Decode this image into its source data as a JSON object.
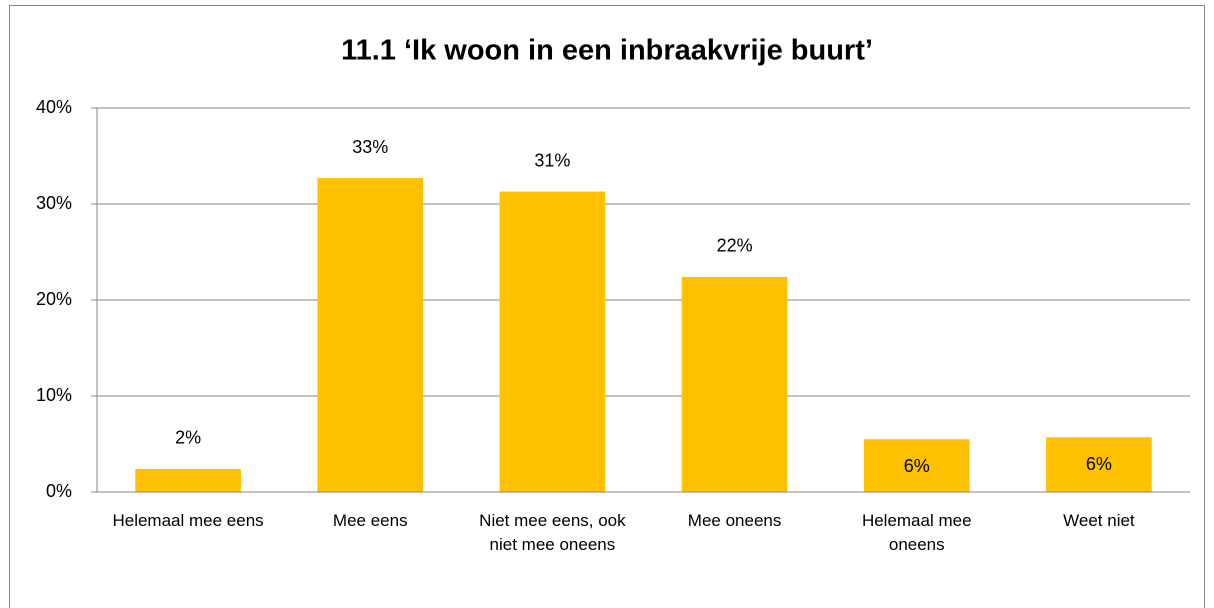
{
  "chart_data": {
    "type": "bar",
    "title": "11.1 ‘Ik woon in een inbraakvrije buurt’",
    "categories": [
      "Helemaal mee eens",
      "Mee eens",
      "Niet mee eens, ook niet mee oneens",
      "Mee oneens",
      "Helemaal mee oneens",
      "Weet niet"
    ],
    "values": [
      2.4,
      32.7,
      31.3,
      22.4,
      5.5,
      5.7
    ],
    "value_labels": [
      "2%",
      "33%",
      "31%",
      "22%",
      "6%",
      "6%"
    ],
    "label_positions": [
      "outside",
      "outside",
      "outside",
      "outside",
      "inside",
      "inside"
    ],
    "color": "#ffc000",
    "ylim": [
      0,
      40
    ],
    "yticks": [
      {
        "value": 0,
        "label": "0%"
      },
      {
        "value": 10,
        "label": "10%"
      },
      {
        "value": 20,
        "label": "20%"
      },
      {
        "value": 30,
        "label": "30%"
      },
      {
        "value": 40,
        "label": "40%"
      }
    ],
    "grid": true
  }
}
